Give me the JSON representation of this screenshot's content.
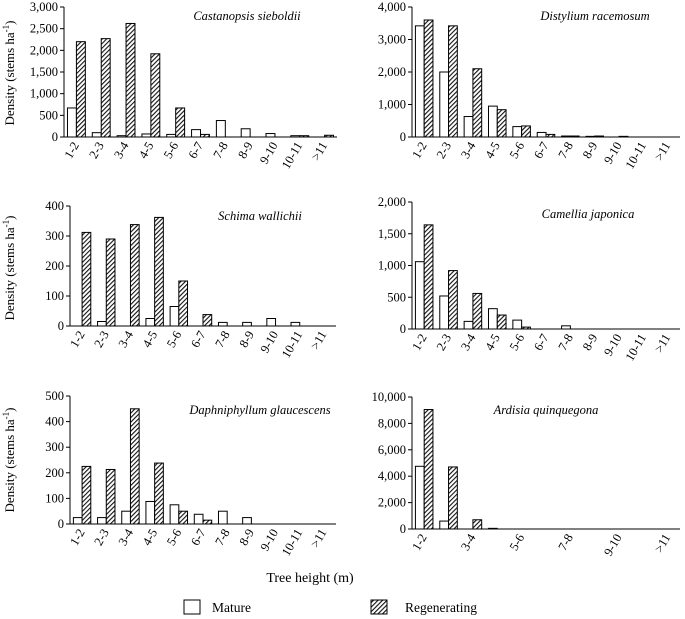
{
  "figure": {
    "xlabel": "Tree height (m)",
    "legend": {
      "mature": "Mature",
      "regenerating": "Regenerating"
    }
  },
  "chart_data": [
    {
      "type": "bar",
      "title": "Castanopsis sieboldii",
      "ylabel": "Density (stems ha",
      "ylabel_sup": "-1",
      "ylabel_close": ")",
      "ylim": [
        0,
        3000
      ],
      "yticks": [
        "0",
        "500",
        "1,000",
        "1,500",
        "2,000",
        "2,500",
        "3,000"
      ],
      "ytick_values": [
        0,
        500,
        1000,
        1500,
        2000,
        2500,
        3000
      ],
      "categories": [
        "1-2",
        "2-3",
        "3-4",
        "4-5",
        "5-6",
        "6-7",
        "7-8",
        "8-9",
        "9-10",
        "10-11",
        ">11"
      ],
      "xtick_labels": [
        "1-2",
        "2-3",
        "3-4",
        "4-5",
        "5-6",
        "6-7",
        "7-8",
        "8-9",
        "9-10",
        "10-11",
        ">11"
      ],
      "series": [
        {
          "name": "Mature",
          "values": [
            670,
            100,
            30,
            70,
            60,
            170,
            380,
            190,
            80,
            30,
            0
          ]
        },
        {
          "name": "Regenerating",
          "values": [
            2200,
            2270,
            2620,
            1920,
            670,
            60,
            0,
            0,
            0,
            30,
            40
          ]
        }
      ]
    },
    {
      "type": "bar",
      "title": "Distylium racemosum",
      "ylim": [
        0,
        4000
      ],
      "yticks": [
        "0",
        "1,000",
        "2,000",
        "3,000",
        "4,000"
      ],
      "ytick_values": [
        0,
        1000,
        2000,
        3000,
        4000
      ],
      "categories": [
        "1-2",
        "2-3",
        "3-4",
        "4-5",
        "5-6",
        "6-7",
        "7-8",
        "8-9",
        "9-10",
        "10-11",
        ">11"
      ],
      "xtick_labels": [
        "1-2",
        "2-3",
        "3-4",
        "4-5",
        "5-6",
        "6-7",
        "7-8",
        "8-9",
        "9-10",
        "10-11",
        ">11"
      ],
      "series": [
        {
          "name": "Mature",
          "values": [
            3420,
            2000,
            630,
            950,
            320,
            140,
            30,
            20,
            0,
            0,
            0
          ]
        },
        {
          "name": "Regenerating",
          "values": [
            3600,
            3420,
            2100,
            840,
            340,
            80,
            30,
            30,
            20,
            0,
            0
          ]
        }
      ]
    },
    {
      "type": "bar",
      "title": "Schima wallichii",
      "ylabel": "Density (stems ha",
      "ylabel_sup": "-1",
      "ylabel_close": ")",
      "ylim": [
        0,
        400
      ],
      "yticks": [
        "0",
        "100",
        "200",
        "300",
        "400"
      ],
      "ytick_values": [
        0,
        100,
        200,
        300,
        400
      ],
      "categories": [
        "1-2",
        "2-3",
        "3-4",
        "4-5",
        "5-6",
        "6-7",
        "7-8",
        "8-9",
        "9-10",
        "10-11",
        ">11"
      ],
      "xtick_labels": [
        "1-2",
        "2-3",
        "3-4",
        "4-5",
        "5-6",
        "6-7",
        "7-8",
        "8-9",
        "9-10",
        "10-11",
        ">11"
      ],
      "series": [
        {
          "name": "Mature",
          "values": [
            0,
            15,
            0,
            25,
            65,
            0,
            12,
            12,
            25,
            12,
            0
          ]
        },
        {
          "name": "Regenerating",
          "values": [
            312,
            290,
            338,
            362,
            150,
            38,
            0,
            0,
            0,
            0,
            0
          ]
        }
      ]
    },
    {
      "type": "bar",
      "title": "Camellia japonica",
      "ylim": [
        0,
        2000
      ],
      "yticks": [
        "0",
        "500",
        "1,000",
        "1,500",
        "2,000"
      ],
      "ytick_values": [
        0,
        500,
        1000,
        1500,
        2000
      ],
      "categories": [
        "1-2",
        "2-3",
        "3-4",
        "4-5",
        "5-6",
        "6-7",
        "7-8",
        "8-9",
        "9-10",
        "10-11",
        ">11"
      ],
      "xtick_labels": [
        "1-2",
        "2-3",
        "3-4",
        "4-5",
        "5-6",
        "6-7",
        "7-8",
        "8-9",
        "9-10",
        "10-11",
        ">11"
      ],
      "series": [
        {
          "name": "Mature",
          "values": [
            1060,
            520,
            120,
            320,
            140,
            0,
            50,
            0,
            0,
            0,
            0
          ]
        },
        {
          "name": "Regenerating",
          "values": [
            1640,
            920,
            560,
            220,
            30,
            0,
            0,
            0,
            0,
            0,
            0
          ]
        }
      ]
    },
    {
      "type": "bar",
      "title": "Daphniphyllum glaucescens",
      "ylabel": "Density (stems ha",
      "ylabel_sup": "-1",
      "ylabel_close": ")",
      "ylim": [
        0,
        500
      ],
      "yticks": [
        "0",
        "100",
        "200",
        "300",
        "400",
        "500"
      ],
      "ytick_values": [
        0,
        100,
        200,
        300,
        400,
        500
      ],
      "categories": [
        "1-2",
        "2-3",
        "3-4",
        "4-5",
        "5-6",
        "6-7",
        "7-8",
        "8-9",
        "9-10",
        "10-11",
        ">11"
      ],
      "xtick_labels": [
        "1-2",
        "2-3",
        "3-4",
        "4-5",
        "5-6",
        "6-7",
        "7-8",
        "8-9",
        "9-10",
        "10-11",
        ">11"
      ],
      "series": [
        {
          "name": "Mature",
          "values": [
            25,
            25,
            50,
            88,
            75,
            38,
            50,
            25,
            0,
            0,
            0
          ]
        },
        {
          "name": "Regenerating",
          "values": [
            225,
            213,
            450,
            238,
            50,
            15,
            0,
            0,
            0,
            0,
            0
          ]
        }
      ]
    },
    {
      "type": "bar",
      "title": "Ardisia quinquegona",
      "ylim": [
        0,
        10000
      ],
      "yticks": [
        "0",
        "2,000",
        "4,000",
        "6,000",
        "8,000",
        "10,000"
      ],
      "ytick_values": [
        0,
        2000,
        4000,
        6000,
        8000,
        10000
      ],
      "categories": [
        "1-2",
        "2-3",
        "3-4",
        "4-5",
        "5-6",
        "6-7",
        "7-8",
        "8-9",
        "9-10",
        "10-11",
        ">11"
      ],
      "xtick_labels": [
        "1-2",
        "",
        "3-4",
        "",
        "5-6",
        "",
        "7-8",
        "",
        "9-10",
        "",
        ">11"
      ],
      "series": [
        {
          "name": "Mature",
          "values": [
            4750,
            600,
            0,
            50,
            0,
            0,
            0,
            0,
            0,
            0,
            0
          ]
        },
        {
          "name": "Regenerating",
          "values": [
            9050,
            4700,
            700,
            0,
            0,
            0,
            0,
            0,
            0,
            0,
            0
          ]
        }
      ]
    }
  ]
}
